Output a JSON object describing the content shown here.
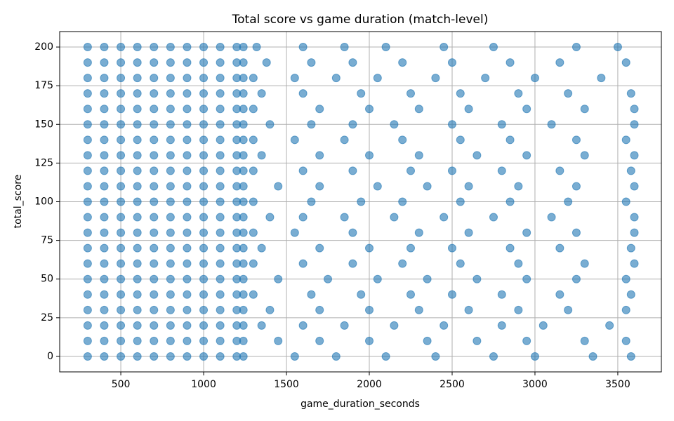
{
  "chart_data": {
    "type": "scatter",
    "title": "Total score vs game duration (match-level)",
    "x_label": "game_duration_seconds",
    "y_label": "total_score",
    "color": "#1f77b4",
    "grid": true,
    "xlim": [
      131,
      3763
    ],
    "ylim": [
      -10,
      210
    ],
    "xticks": [
      500,
      1000,
      1500,
      2000,
      2500,
      3000,
      3500
    ],
    "yticks": [
      0,
      25,
      50,
      75,
      100,
      125,
      150,
      175,
      200
    ],
    "x": [
      300,
      400,
      500,
      600,
      700,
      800,
      900,
      1000,
      1100,
      1200,
      1240,
      1320,
      1600,
      1850,
      2100,
      2450,
      2750,
      3250,
      3500,
      300,
      400,
      500,
      600,
      700,
      800,
      900,
      1000,
      1100,
      1200,
      1240,
      1380,
      1650,
      1900,
      2200,
      2500,
      2850,
      3150,
      3550,
      300,
      400,
      500,
      600,
      700,
      800,
      900,
      1000,
      1100,
      1200,
      1240,
      1300,
      1550,
      1800,
      2050,
      2400,
      2700,
      3000,
      3400,
      300,
      400,
      500,
      600,
      700,
      800,
      900,
      1000,
      1100,
      1200,
      1240,
      1350,
      1600,
      1950,
      2250,
      2550,
      2900,
      3200,
      3580,
      300,
      400,
      500,
      600,
      700,
      800,
      900,
      1000,
      1100,
      1200,
      1240,
      1300,
      1700,
      2000,
      2300,
      2600,
      2950,
      3300,
      3600,
      300,
      400,
      500,
      600,
      700,
      800,
      900,
      1000,
      1100,
      1200,
      1240,
      1400,
      1650,
      1900,
      2150,
      2500,
      2800,
      3100,
      3600,
      300,
      400,
      500,
      600,
      700,
      800,
      900,
      1000,
      1100,
      1200,
      1240,
      1300,
      1550,
      1850,
      2200,
      2550,
      2850,
      3250,
      3550,
      300,
      400,
      500,
      600,
      700,
      800,
      900,
      1000,
      1100,
      1200,
      1240,
      1350,
      1700,
      2000,
      2300,
      2650,
      2950,
      3300,
      3600,
      300,
      400,
      500,
      600,
      700,
      800,
      900,
      1000,
      1100,
      1200,
      1240,
      1300,
      1600,
      1900,
      2250,
      2500,
      2800,
      3150,
      3580,
      300,
      400,
      500,
      600,
      700,
      800,
      900,
      1000,
      1100,
      1200,
      1240,
      1450,
      1700,
      2050,
      2350,
      2600,
      2900,
      3250,
      3600,
      300,
      400,
      500,
      600,
      700,
      800,
      900,
      1000,
      1100,
      1200,
      1240,
      1300,
      1650,
      1950,
      2200,
      2550,
      2850,
      3200,
      3550,
      300,
      400,
      500,
      600,
      700,
      800,
      900,
      1000,
      1100,
      1200,
      1240,
      1400,
      1600,
      1850,
      2150,
      2450,
      2750,
      3100,
      3600,
      300,
      400,
      500,
      600,
      700,
      800,
      900,
      1000,
      1100,
      1200,
      1240,
      1300,
      1550,
      1900,
      2300,
      2600,
      2950,
      3250,
      3600,
      300,
      400,
      500,
      600,
      700,
      800,
      900,
      1000,
      1100,
      1200,
      1240,
      1350,
      1700,
      2000,
      2250,
      2500,
      2850,
      3150,
      3580,
      300,
      400,
      500,
      600,
      700,
      800,
      900,
      1000,
      1100,
      1200,
      1240,
      1300,
      1600,
      1900,
      2200,
      2550,
      2900,
      3300,
      3600,
      300,
      400,
      500,
      600,
      700,
      800,
      900,
      1000,
      1100,
      1200,
      1240,
      1450,
      1750,
      2050,
      2350,
      2650,
      2950,
      3250,
      3550,
      300,
      400,
      500,
      600,
      700,
      800,
      900,
      1000,
      1100,
      1200,
      1240,
      1300,
      1650,
      1950,
      2250,
      2500,
      2800,
      3150,
      3580,
      300,
      400,
      500,
      600,
      700,
      800,
      900,
      1000,
      1100,
      1200,
      1240,
      1400,
      1700,
      2000,
      2300,
      2600,
      2900,
      3200,
      3550,
      300,
      400,
      500,
      600,
      700,
      800,
      900,
      1000,
      1100,
      1200,
      1240,
      1350,
      1600,
      1850,
      2150,
      2450,
      2800,
      3050,
      3450,
      300,
      400,
      500,
      600,
      700,
      800,
      900,
      1000,
      1100,
      1200,
      1240,
      1450,
      1700,
      2000,
      2350,
      2650,
      2950,
      3300,
      3550,
      300,
      400,
      500,
      600,
      700,
      800,
      900,
      1000,
      1100,
      1200,
      1240,
      1550,
      1800,
      2100,
      2400,
      2750,
      3000,
      3350,
      3580
    ],
    "values": [
      200,
      200,
      200,
      200,
      200,
      200,
      200,
      200,
      200,
      200,
      200,
      200,
      200,
      200,
      200,
      200,
      200,
      200,
      200,
      190,
      190,
      190,
      190,
      190,
      190,
      190,
      190,
      190,
      190,
      190,
      190,
      190,
      190,
      190,
      190,
      190,
      190,
      190,
      180,
      180,
      180,
      180,
      180,
      180,
      180,
      180,
      180,
      180,
      180,
      180,
      180,
      180,
      180,
      180,
      180,
      180,
      180,
      170,
      170,
      170,
      170,
      170,
      170,
      170,
      170,
      170,
      170,
      170,
      170,
      170,
      170,
      170,
      170,
      170,
      170,
      170,
      160,
      160,
      160,
      160,
      160,
      160,
      160,
      160,
      160,
      160,
      160,
      160,
      160,
      160,
      160,
      160,
      160,
      160,
      160,
      150,
      150,
      150,
      150,
      150,
      150,
      150,
      150,
      150,
      150,
      150,
      150,
      150,
      150,
      150,
      150,
      150,
      150,
      150,
      140,
      140,
      140,
      140,
      140,
      140,
      140,
      140,
      140,
      140,
      140,
      140,
      140,
      140,
      140,
      140,
      140,
      140,
      140,
      130,
      130,
      130,
      130,
      130,
      130,
      130,
      130,
      130,
      130,
      130,
      130,
      130,
      130,
      130,
      130,
      130,
      130,
      130,
      120,
      120,
      120,
      120,
      120,
      120,
      120,
      120,
      120,
      120,
      120,
      120,
      120,
      120,
      120,
      120,
      120,
      120,
      120,
      110,
      110,
      110,
      110,
      110,
      110,
      110,
      110,
      110,
      110,
      110,
      110,
      110,
      110,
      110,
      110,
      110,
      110,
      110,
      100,
      100,
      100,
      100,
      100,
      100,
      100,
      100,
      100,
      100,
      100,
      100,
      100,
      100,
      100,
      100,
      100,
      100,
      100,
      90,
      90,
      90,
      90,
      90,
      90,
      90,
      90,
      90,
      90,
      90,
      90,
      90,
      90,
      90,
      90,
      90,
      90,
      90,
      80,
      80,
      80,
      80,
      80,
      80,
      80,
      80,
      80,
      80,
      80,
      80,
      80,
      80,
      80,
      80,
      80,
      80,
      80,
      70,
      70,
      70,
      70,
      70,
      70,
      70,
      70,
      70,
      70,
      70,
      70,
      70,
      70,
      70,
      70,
      70,
      70,
      70,
      60,
      60,
      60,
      60,
      60,
      60,
      60,
      60,
      60,
      60,
      60,
      60,
      60,
      60,
      60,
      60,
      60,
      60,
      60,
      50,
      50,
      50,
      50,
      50,
      50,
      50,
      50,
      50,
      50,
      50,
      50,
      50,
      50,
      50,
      50,
      50,
      50,
      50,
      40,
      40,
      40,
      40,
      40,
      40,
      40,
      40,
      40,
      40,
      40,
      40,
      40,
      40,
      40,
      40,
      40,
      40,
      40,
      30,
      30,
      30,
      30,
      30,
      30,
      30,
      30,
      30,
      30,
      30,
      30,
      30,
      30,
      30,
      30,
      30,
      30,
      30,
      20,
      20,
      20,
      20,
      20,
      20,
      20,
      20,
      20,
      20,
      20,
      20,
      20,
      20,
      20,
      20,
      20,
      20,
      20,
      10,
      10,
      10,
      10,
      10,
      10,
      10,
      10,
      10,
      10,
      10,
      10,
      10,
      10,
      10,
      10,
      10,
      10,
      10,
      0,
      0,
      0,
      0,
      0,
      0,
      0,
      0,
      0,
      0,
      0,
      0,
      0,
      0,
      0,
      0,
      0,
      0,
      0
    ]
  }
}
